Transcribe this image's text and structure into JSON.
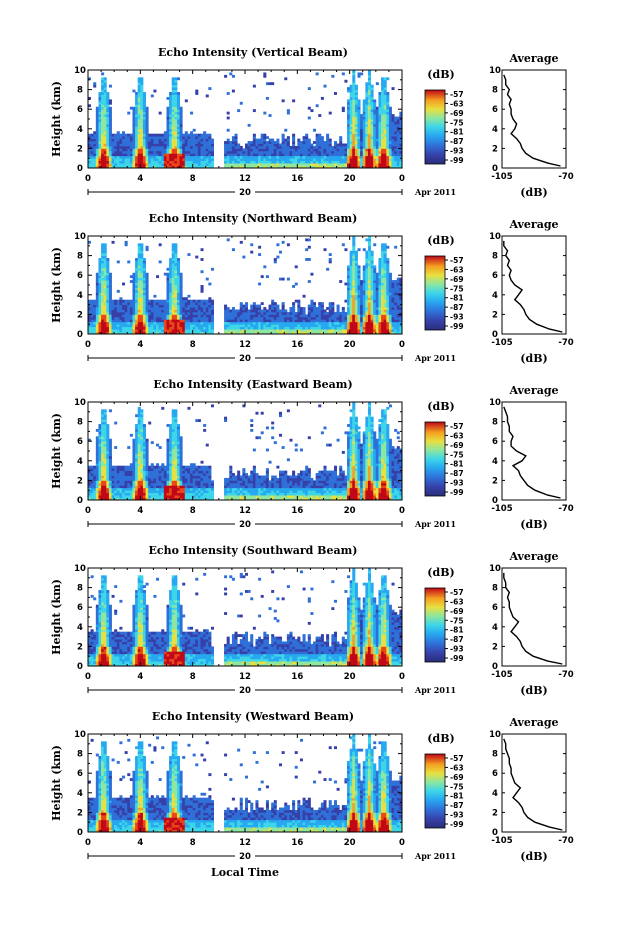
{
  "chart_data": {
    "type": "heatmap",
    "panels": [
      {
        "title": "Echo Intensity (Vertical Beam)",
        "ylabel": "Height (km)",
        "y_ticks": [
          "0",
          "2",
          "4",
          "6",
          "8",
          "10"
        ],
        "x_ticks": [
          "0",
          "4",
          "8",
          "12",
          "16",
          "20",
          "0"
        ],
        "date_label": "20",
        "month_label": "Apr 2011",
        "colorbar_title": "(dB)",
        "colorbar_ticks": [
          "-57",
          "-63",
          "-69",
          "-75",
          "-81",
          "-87",
          "-93",
          "-99"
        ],
        "average_title": "Average",
        "average_xlabel": "(dB)",
        "average_x_ticks": [
          "-105",
          "-70"
        ],
        "average_y_ticks": [
          "0",
          "2",
          "4",
          "6",
          "8",
          "10"
        ],
        "average_profile": {
          "height_km": [
            0.2,
            0.5,
            1.0,
            1.5,
            2.0,
            2.5,
            3.0,
            3.5,
            4.0,
            4.5,
            5.0,
            5.5,
            6.0,
            6.5,
            7.0,
            7.5,
            8.0,
            8.5,
            9.0,
            9.5
          ],
          "db": [
            -73,
            -80,
            -88,
            -92,
            -94,
            -95,
            -97,
            -100,
            -98,
            -97,
            -99,
            -100,
            -100,
            -101,
            -100,
            -102,
            -101,
            -103,
            -103,
            -104
          ]
        }
      },
      {
        "title": "Echo Intensity (Northward Beam)",
        "ylabel": "Height (km)",
        "y_ticks": [
          "0",
          "2",
          "4",
          "6",
          "8",
          "10"
        ],
        "x_ticks": [
          "0",
          "4",
          "8",
          "12",
          "16",
          "20",
          "0"
        ],
        "date_label": "20",
        "month_label": "Apr 2011",
        "colorbar_title": "(dB)",
        "colorbar_ticks": [
          "-57",
          "-63",
          "-69",
          "-75",
          "-81",
          "-87",
          "-93",
          "-99"
        ],
        "average_title": "Average",
        "average_xlabel": "(dB)",
        "average_x_ticks": [
          "-105",
          "-70"
        ],
        "average_y_ticks": [
          "0",
          "2",
          "4",
          "6",
          "8",
          "10"
        ],
        "average_profile": {
          "height_km": [
            0.2,
            0.5,
            1.0,
            1.5,
            2.0,
            2.5,
            3.0,
            3.5,
            4.0,
            4.5,
            5.0,
            5.5,
            6.0,
            6.5,
            7.0,
            7.5,
            8.0,
            8.5,
            9.0,
            9.5
          ],
          "db": [
            -72,
            -79,
            -86,
            -90,
            -92,
            -93,
            -95,
            -98,
            -96,
            -94,
            -98,
            -100,
            -101,
            -100,
            -102,
            -101,
            -103,
            -102,
            -104,
            -104
          ]
        }
      },
      {
        "title": "Echo Intensity (Eastward Beam)",
        "ylabel": "Height (km)",
        "y_ticks": [
          "0",
          "2",
          "4",
          "6",
          "8",
          "10"
        ],
        "x_ticks": [
          "0",
          "4",
          "8",
          "12",
          "16",
          "20",
          "0"
        ],
        "date_label": "20",
        "month_label": "Apr 2011",
        "colorbar_title": "(dB)",
        "colorbar_ticks": [
          "-57",
          "-63",
          "-69",
          "-75",
          "-81",
          "-87",
          "-93",
          "-99"
        ],
        "average_title": "Average",
        "average_xlabel": "(dB)",
        "average_x_ticks": [
          "-105",
          "-70"
        ],
        "average_y_ticks": [
          "0",
          "2",
          "4",
          "6",
          "8",
          "10"
        ],
        "average_profile": {
          "height_km": [
            0.2,
            0.5,
            1.0,
            1.5,
            2.0,
            2.5,
            3.0,
            3.5,
            4.0,
            4.5,
            5.0,
            5.5,
            6.0,
            6.5,
            7.0,
            7.5,
            8.0,
            8.5,
            9.0,
            9.5
          ],
          "db": [
            -73,
            -80,
            -87,
            -91,
            -93,
            -95,
            -96,
            -99,
            -94,
            -92,
            -97,
            -100,
            -100,
            -99,
            -101,
            -101,
            -102,
            -102,
            -103,
            -104
          ]
        }
      },
      {
        "title": "Echo Intensity (Southward Beam)",
        "ylabel": "Height (km)",
        "y_ticks": [
          "0",
          "2",
          "4",
          "6",
          "8",
          "10"
        ],
        "x_ticks": [
          "0",
          "4",
          "8",
          "12",
          "16",
          "20",
          "0"
        ],
        "date_label": "20",
        "month_label": "Apr 2011",
        "colorbar_title": "(dB)",
        "colorbar_ticks": [
          "-57",
          "-63",
          "-69",
          "-75",
          "-81",
          "-87",
          "-93",
          "-99"
        ],
        "average_title": "Average",
        "average_xlabel": "(dB)",
        "average_x_ticks": [
          "-105",
          "-70"
        ],
        "average_y_ticks": [
          "0",
          "2",
          "4",
          "6",
          "8",
          "10"
        ],
        "average_profile": {
          "height_km": [
            0.2,
            0.5,
            1.0,
            1.5,
            2.0,
            2.5,
            3.0,
            3.5,
            4.0,
            4.5,
            5.0,
            5.5,
            6.0,
            6.5,
            7.0,
            7.5,
            8.0,
            8.5,
            9.0,
            9.5
          ],
          "db": [
            -72,
            -80,
            -88,
            -92,
            -94,
            -95,
            -97,
            -100,
            -98,
            -96,
            -99,
            -100,
            -101,
            -101,
            -102,
            -101,
            -103,
            -103,
            -104,
            -104
          ]
        }
      },
      {
        "title": "Echo Intensity (Westward Beam)",
        "ylabel": "Height (km)",
        "y_ticks": [
          "0",
          "2",
          "4",
          "6",
          "8",
          "10"
        ],
        "x_ticks": [
          "0",
          "4",
          "8",
          "12",
          "16",
          "20",
          "0"
        ],
        "date_label": "20",
        "month_label": "Apr 2011",
        "colorbar_title": "(dB)",
        "colorbar_ticks": [
          "-57",
          "-63",
          "-69",
          "-75",
          "-81",
          "-87",
          "-93",
          "-99"
        ],
        "average_title": "Average",
        "average_xlabel": "(dB)",
        "average_x_ticks": [
          "-105",
          "-70"
        ],
        "average_y_ticks": [
          "0",
          "2",
          "4",
          "6",
          "8",
          "10"
        ],
        "average_profile": {
          "height_km": [
            0.2,
            0.5,
            1.0,
            1.5,
            2.0,
            2.5,
            3.0,
            3.5,
            4.0,
            4.5,
            5.0,
            5.5,
            6.0,
            6.5,
            7.0,
            7.5,
            8.0,
            8.5,
            9.0,
            9.5
          ],
          "db": [
            -72,
            -79,
            -87,
            -91,
            -93,
            -94,
            -96,
            -99,
            -97,
            -95,
            -98,
            -99,
            -100,
            -100,
            -101,
            -101,
            -102,
            -103,
            -103,
            -104
          ]
        }
      }
    ],
    "shared_xlabel": "Local Time",
    "x_range_hours": [
      0,
      24
    ],
    "y_range_km": [
      0,
      10
    ],
    "colorbar_range_db": [
      -99,
      -57
    ],
    "data_gap_hours": [
      9.5,
      10.5
    ],
    "convective_columns_hours": [
      1.2,
      4.0,
      6.6,
      20.3,
      21.5,
      22.6
    ],
    "colormap": [
      "#2a2e7a",
      "#3640a8",
      "#2f70d8",
      "#27a8f0",
      "#3dd6e8",
      "#8ee6a0",
      "#e8e040",
      "#f4a020",
      "#e84818",
      "#c00818"
    ]
  }
}
